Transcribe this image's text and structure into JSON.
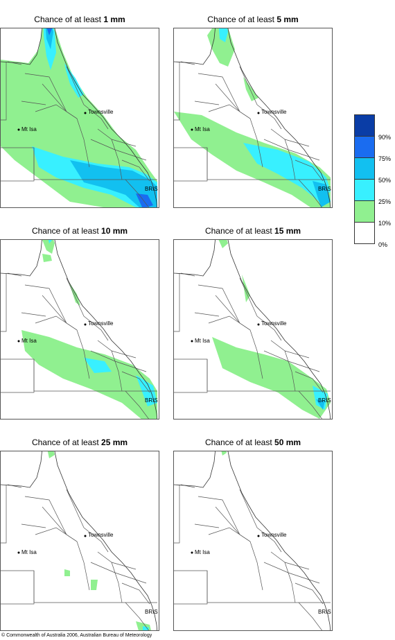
{
  "panels": [
    {
      "prefix": "Chance of at least ",
      "amount": "1 mm"
    },
    {
      "prefix": "Chance of at least ",
      "amount": "5 mm"
    },
    {
      "prefix": "Chance of at least ",
      "amount": "10 mm"
    },
    {
      "prefix": "Chance of at least ",
      "amount": "15 mm"
    },
    {
      "prefix": "Chance of at least ",
      "amount": "25 mm"
    },
    {
      "prefix": "Chance of at least ",
      "amount": "50 mm"
    }
  ],
  "places": {
    "townsville": "Townsville",
    "mt_isa": "Mt Isa",
    "bris": "BRIS"
  },
  "legend": {
    "labels": [
      "90%",
      "75%",
      "50%",
      "25%",
      "10%",
      "0%"
    ],
    "colors": [
      "#0a3da6",
      "#1a6cf0",
      "#12c0f0",
      "#38f0ff",
      "#90f090",
      "#ffffff"
    ]
  },
  "copyright": "© Commonwealth of Australia 2006, Australian Bureau of Meteorology",
  "colors": {
    "c10": "#90f090",
    "c25": "#38f0ff",
    "c50": "#12c0f0",
    "c75": "#1a6cf0",
    "c90": "#0a3da6"
  }
}
